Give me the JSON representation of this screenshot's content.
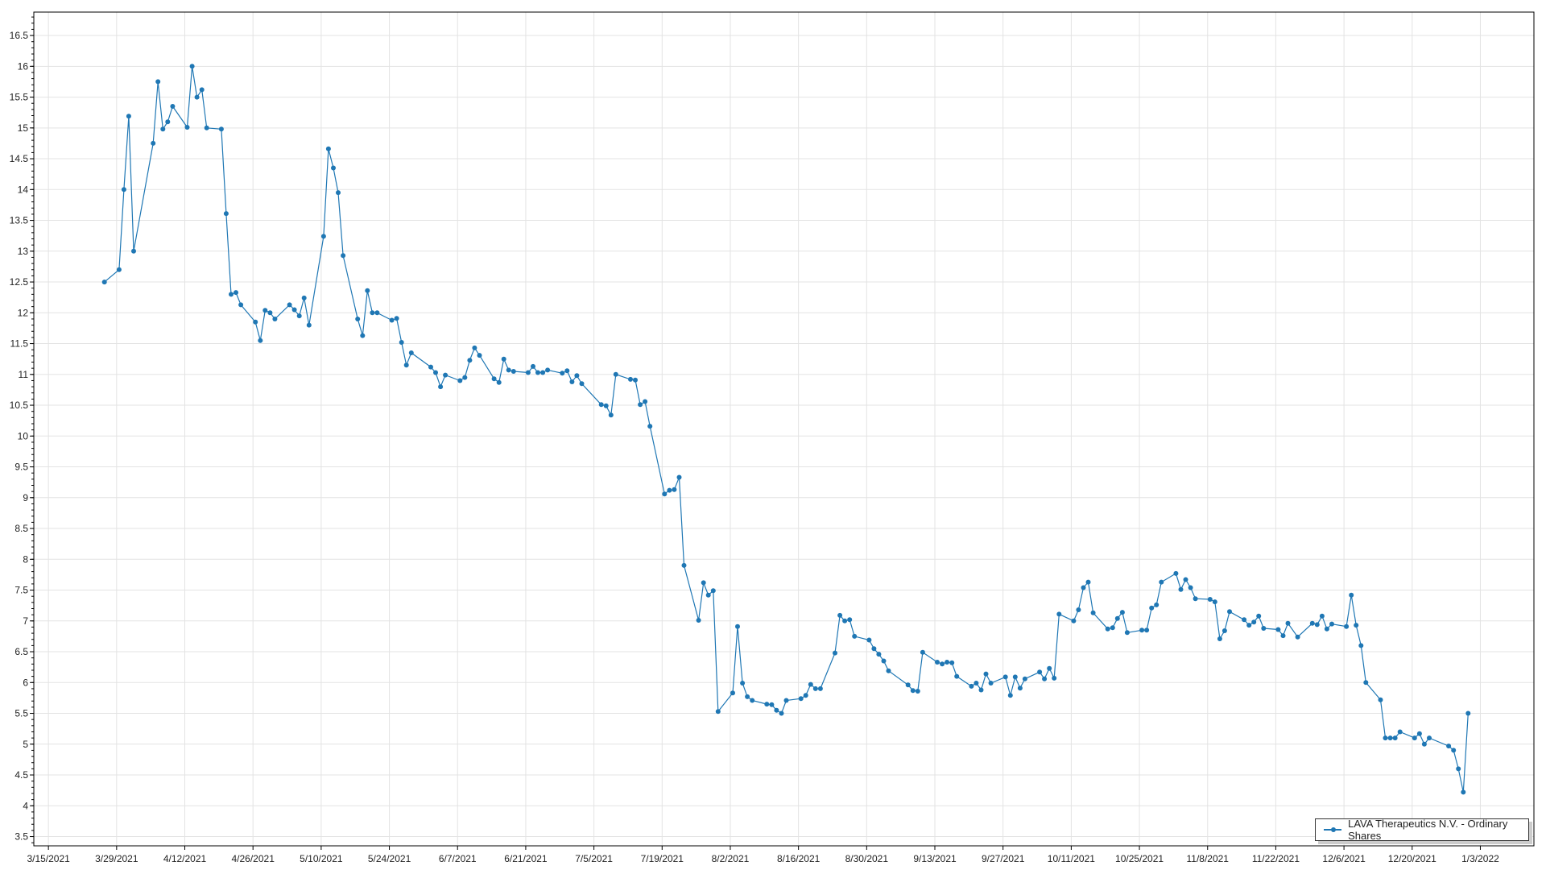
{
  "chart_data": {
    "type": "line",
    "title": "",
    "xlabel": "",
    "ylabel": "",
    "grid": true,
    "legend_placement": "bottom-right",
    "color": "#1f77b4",
    "xlim": [
      "2021-03-12",
      "2022-01-14"
    ],
    "ylim": [
      3.35,
      16.88
    ],
    "y_ticks": [
      "3.5",
      "4",
      "4.5",
      "5",
      "5.5",
      "6",
      "6.5",
      "7",
      "7.5",
      "8",
      "8.5",
      "9",
      "9.5",
      "10",
      "10.5",
      "11",
      "11.5",
      "12",
      "12.5",
      "13",
      "13.5",
      "14",
      "14.5",
      "15",
      "15.5",
      "16",
      "16.5"
    ],
    "x_ticks": [
      "3/15/2021",
      "3/29/2021",
      "4/12/2021",
      "4/26/2021",
      "5/10/2021",
      "5/24/2021",
      "6/7/2021",
      "6/21/2021",
      "7/5/2021",
      "7/19/2021",
      "8/2/2021",
      "8/16/2021",
      "8/30/2021",
      "9/13/2021",
      "9/27/2021",
      "10/11/2021",
      "10/25/2021",
      "11/8/2021",
      "11/22/2021",
      "12/6/2021",
      "12/20/2021",
      "1/3/2022"
    ],
    "series": [
      {
        "name": "LAVA Therapeutics N.V. - Ordinary Shares",
        "points": [
          [
            "2021-03-26",
            12.5
          ],
          [
            "2021-03-29",
            12.7
          ],
          [
            "2021-03-30",
            14.0
          ],
          [
            "2021-03-31",
            15.19
          ],
          [
            "2021-04-01",
            13.0
          ],
          [
            "2021-04-05",
            14.75
          ],
          [
            "2021-04-06",
            15.75
          ],
          [
            "2021-04-07",
            14.98
          ],
          [
            "2021-04-08",
            15.1
          ],
          [
            "2021-04-09",
            15.35
          ],
          [
            "2021-04-12",
            15.01
          ],
          [
            "2021-04-13",
            16.0
          ],
          [
            "2021-04-14",
            15.5
          ],
          [
            "2021-04-15",
            15.62
          ],
          [
            "2021-04-16",
            15.0
          ],
          [
            "2021-04-19",
            14.98
          ],
          [
            "2021-04-20",
            13.61
          ],
          [
            "2021-04-21",
            12.3
          ],
          [
            "2021-04-22",
            12.33
          ],
          [
            "2021-04-23",
            12.13
          ],
          [
            "2021-04-26",
            11.85
          ],
          [
            "2021-04-27",
            11.55
          ],
          [
            "2021-04-28",
            12.04
          ],
          [
            "2021-04-29",
            12.0
          ],
          [
            "2021-04-30",
            11.9
          ],
          [
            "2021-05-03",
            12.13
          ],
          [
            "2021-05-04",
            12.05
          ],
          [
            "2021-05-05",
            11.95
          ],
          [
            "2021-05-06",
            12.24
          ],
          [
            "2021-05-07",
            11.8
          ],
          [
            "2021-05-10",
            13.24
          ],
          [
            "2021-05-11",
            14.66
          ],
          [
            "2021-05-12",
            14.35
          ],
          [
            "2021-05-13",
            13.95
          ],
          [
            "2021-05-14",
            12.93
          ],
          [
            "2021-05-17",
            11.9
          ],
          [
            "2021-05-18",
            11.63
          ],
          [
            "2021-05-19",
            12.36
          ],
          [
            "2021-05-20",
            12.0
          ],
          [
            "2021-05-21",
            12.0
          ],
          [
            "2021-05-24",
            11.88
          ],
          [
            "2021-05-25",
            11.91
          ],
          [
            "2021-05-26",
            11.52
          ],
          [
            "2021-05-27",
            11.15
          ],
          [
            "2021-05-28",
            11.35
          ],
          [
            "2021-06-01",
            11.12
          ],
          [
            "2021-06-02",
            11.03
          ],
          [
            "2021-06-03",
            10.8
          ],
          [
            "2021-06-04",
            10.99
          ],
          [
            "2021-06-07",
            10.9
          ],
          [
            "2021-06-08",
            10.95
          ],
          [
            "2021-06-09",
            11.23
          ],
          [
            "2021-06-10",
            11.43
          ],
          [
            "2021-06-11",
            11.31
          ],
          [
            "2021-06-14",
            10.93
          ],
          [
            "2021-06-15",
            10.87
          ],
          [
            "2021-06-16",
            11.25
          ],
          [
            "2021-06-17",
            11.07
          ],
          [
            "2021-06-18",
            11.05
          ],
          [
            "2021-06-21",
            11.03
          ],
          [
            "2021-06-22",
            11.13
          ],
          [
            "2021-06-23",
            11.03
          ],
          [
            "2021-06-24",
            11.03
          ],
          [
            "2021-06-25",
            11.07
          ],
          [
            "2021-06-28",
            11.02
          ],
          [
            "2021-06-29",
            11.06
          ],
          [
            "2021-06-30",
            10.88
          ],
          [
            "2021-07-01",
            10.98
          ],
          [
            "2021-07-02",
            10.85
          ],
          [
            "2021-07-06",
            10.51
          ],
          [
            "2021-07-07",
            10.49
          ],
          [
            "2021-07-08",
            10.34
          ],
          [
            "2021-07-09",
            11.0
          ],
          [
            "2021-07-12",
            10.92
          ],
          [
            "2021-07-13",
            10.91
          ],
          [
            "2021-07-14",
            10.51
          ],
          [
            "2021-07-15",
            10.56
          ],
          [
            "2021-07-16",
            10.16
          ],
          [
            "2021-07-19",
            9.06
          ],
          [
            "2021-07-20",
            9.12
          ],
          [
            "2021-07-21",
            9.13
          ],
          [
            "2021-07-22",
            9.33
          ],
          [
            "2021-07-23",
            7.9
          ],
          [
            "2021-07-26",
            7.01
          ],
          [
            "2021-07-27",
            7.62
          ],
          [
            "2021-07-28",
            7.42
          ],
          [
            "2021-07-29",
            7.49
          ],
          [
            "2021-07-30",
            5.53
          ],
          [
            "2021-08-02",
            5.83
          ],
          [
            "2021-08-03",
            6.91
          ],
          [
            "2021-08-04",
            5.99
          ],
          [
            "2021-08-05",
            5.77
          ],
          [
            "2021-08-06",
            5.71
          ],
          [
            "2021-08-09",
            5.65
          ],
          [
            "2021-08-10",
            5.64
          ],
          [
            "2021-08-11",
            5.55
          ],
          [
            "2021-08-12",
            5.5
          ],
          [
            "2021-08-13",
            5.71
          ],
          [
            "2021-08-16",
            5.74
          ],
          [
            "2021-08-17",
            5.79
          ],
          [
            "2021-08-18",
            5.97
          ],
          [
            "2021-08-19",
            5.9
          ],
          [
            "2021-08-20",
            5.9
          ],
          [
            "2021-08-23",
            6.48
          ],
          [
            "2021-08-24",
            7.09
          ],
          [
            "2021-08-25",
            7.0
          ],
          [
            "2021-08-26",
            7.02
          ],
          [
            "2021-08-27",
            6.75
          ],
          [
            "2021-08-30",
            6.69
          ],
          [
            "2021-08-31",
            6.55
          ],
          [
            "2021-09-01",
            6.46
          ],
          [
            "2021-09-02",
            6.35
          ],
          [
            "2021-09-03",
            6.19
          ],
          [
            "2021-09-07",
            5.96
          ],
          [
            "2021-09-08",
            5.87
          ],
          [
            "2021-09-09",
            5.86
          ],
          [
            "2021-09-10",
            6.49
          ],
          [
            "2021-09-13",
            6.33
          ],
          [
            "2021-09-14",
            6.3
          ],
          [
            "2021-09-15",
            6.33
          ],
          [
            "2021-09-16",
            6.32
          ],
          [
            "2021-09-17",
            6.1
          ],
          [
            "2021-09-20",
            5.94
          ],
          [
            "2021-09-21",
            5.99
          ],
          [
            "2021-09-22",
            5.88
          ],
          [
            "2021-09-23",
            6.14
          ],
          [
            "2021-09-24",
            5.99
          ],
          [
            "2021-09-27",
            6.09
          ],
          [
            "2021-09-28",
            5.79
          ],
          [
            "2021-09-29",
            6.09
          ],
          [
            "2021-09-30",
            5.91
          ],
          [
            "2021-10-01",
            6.06
          ],
          [
            "2021-10-04",
            6.17
          ],
          [
            "2021-10-05",
            6.06
          ],
          [
            "2021-10-06",
            6.23
          ],
          [
            "2021-10-07",
            6.07
          ],
          [
            "2021-10-08",
            7.11
          ],
          [
            "2021-10-11",
            7.0
          ],
          [
            "2021-10-12",
            7.18
          ],
          [
            "2021-10-13",
            7.54
          ],
          [
            "2021-10-14",
            7.63
          ],
          [
            "2021-10-15",
            7.13
          ],
          [
            "2021-10-18",
            6.87
          ],
          [
            "2021-10-19",
            6.89
          ],
          [
            "2021-10-20",
            7.04
          ],
          [
            "2021-10-21",
            7.14
          ],
          [
            "2021-10-22",
            6.81
          ],
          [
            "2021-10-25",
            6.85
          ],
          [
            "2021-10-26",
            6.85
          ],
          [
            "2021-10-27",
            7.21
          ],
          [
            "2021-10-28",
            7.26
          ],
          [
            "2021-10-29",
            7.63
          ],
          [
            "2021-11-01",
            7.77
          ],
          [
            "2021-11-02",
            7.51
          ],
          [
            "2021-11-03",
            7.67
          ],
          [
            "2021-11-04",
            7.54
          ],
          [
            "2021-11-05",
            7.36
          ],
          [
            "2021-11-08",
            7.35
          ],
          [
            "2021-11-09",
            7.31
          ],
          [
            "2021-11-10",
            6.71
          ],
          [
            "2021-11-11",
            6.84
          ],
          [
            "2021-11-12",
            7.15
          ],
          [
            "2021-11-15",
            7.02
          ],
          [
            "2021-11-16",
            6.93
          ],
          [
            "2021-11-17",
            6.98
          ],
          [
            "2021-11-18",
            7.08
          ],
          [
            "2021-11-19",
            6.88
          ],
          [
            "2021-11-22",
            6.86
          ],
          [
            "2021-11-23",
            6.76
          ],
          [
            "2021-11-24",
            6.96
          ],
          [
            "2021-11-26",
            6.74
          ],
          [
            "2021-11-29",
            6.96
          ],
          [
            "2021-11-30",
            6.94
          ],
          [
            "2021-12-01",
            7.08
          ],
          [
            "2021-12-02",
            6.87
          ],
          [
            "2021-12-03",
            6.95
          ],
          [
            "2021-12-06",
            6.91
          ],
          [
            "2021-12-07",
            7.42
          ],
          [
            "2021-12-08",
            6.93
          ],
          [
            "2021-12-09",
            6.6
          ],
          [
            "2021-12-10",
            6.0
          ],
          [
            "2021-12-13",
            5.72
          ],
          [
            "2021-12-14",
            5.1
          ],
          [
            "2021-12-15",
            5.1
          ],
          [
            "2021-12-16",
            5.1
          ],
          [
            "2021-12-17",
            5.2
          ],
          [
            "2021-12-20",
            5.1
          ],
          [
            "2021-12-21",
            5.17
          ],
          [
            "2021-12-22",
            5.0
          ],
          [
            "2021-12-23",
            5.1
          ],
          [
            "2021-12-27",
            4.97
          ],
          [
            "2021-12-28",
            4.9
          ],
          [
            "2021-12-29",
            4.6
          ],
          [
            "2021-12-30",
            4.22
          ],
          [
            "2021-12-31",
            5.5
          ]
        ]
      }
    ]
  }
}
